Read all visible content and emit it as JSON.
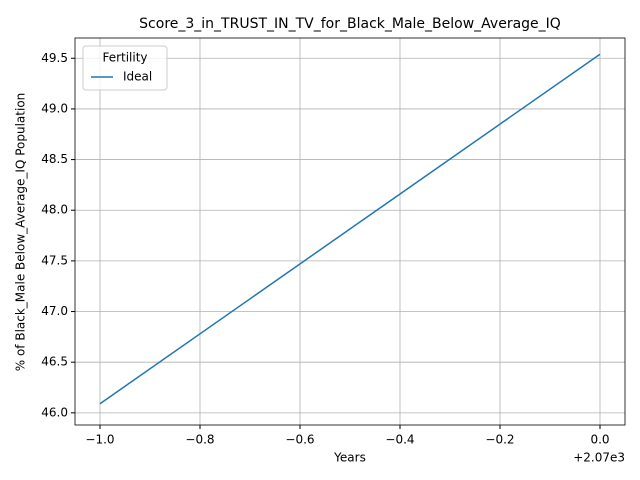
{
  "chart_data": {
    "type": "line",
    "title": "Score_3_in_TRUST_IN_TV_for_Black_Male_Below_Average_IQ",
    "xlabel": "Years",
    "ylabel": "% of Black_Male Below_Average_IQ Population",
    "x_offset_label": "+2.07e3",
    "x": [
      -1.0,
      0.0
    ],
    "series": [
      {
        "name": "Ideal",
        "color": "#1f77b4",
        "values": [
          46.09,
          49.54
        ]
      }
    ],
    "legend_title": "Fertility",
    "legend": "upper left",
    "grid": true,
    "xlim": [
      -1.05,
      0.05
    ],
    "xticks": [
      {
        "value": -1.0,
        "label": "−1.0"
      },
      {
        "value": -0.8,
        "label": "−0.8"
      },
      {
        "value": -0.6,
        "label": "−0.6"
      },
      {
        "value": -0.4,
        "label": "−0.4"
      },
      {
        "value": -0.2,
        "label": "−0.2"
      },
      {
        "value": 0,
        "label": "0.0"
      }
    ],
    "ylim": [
      45.88,
      49.7
    ],
    "yticks": [
      {
        "value": 46,
        "label": "46.0"
      },
      46.5,
      {
        "value": 47,
        "label": "47.0"
      },
      47.5,
      {
        "value": 48,
        "label": "48.0"
      },
      48.5,
      {
        "value": 49,
        "label": "49.0"
      },
      49.5
    ]
  }
}
